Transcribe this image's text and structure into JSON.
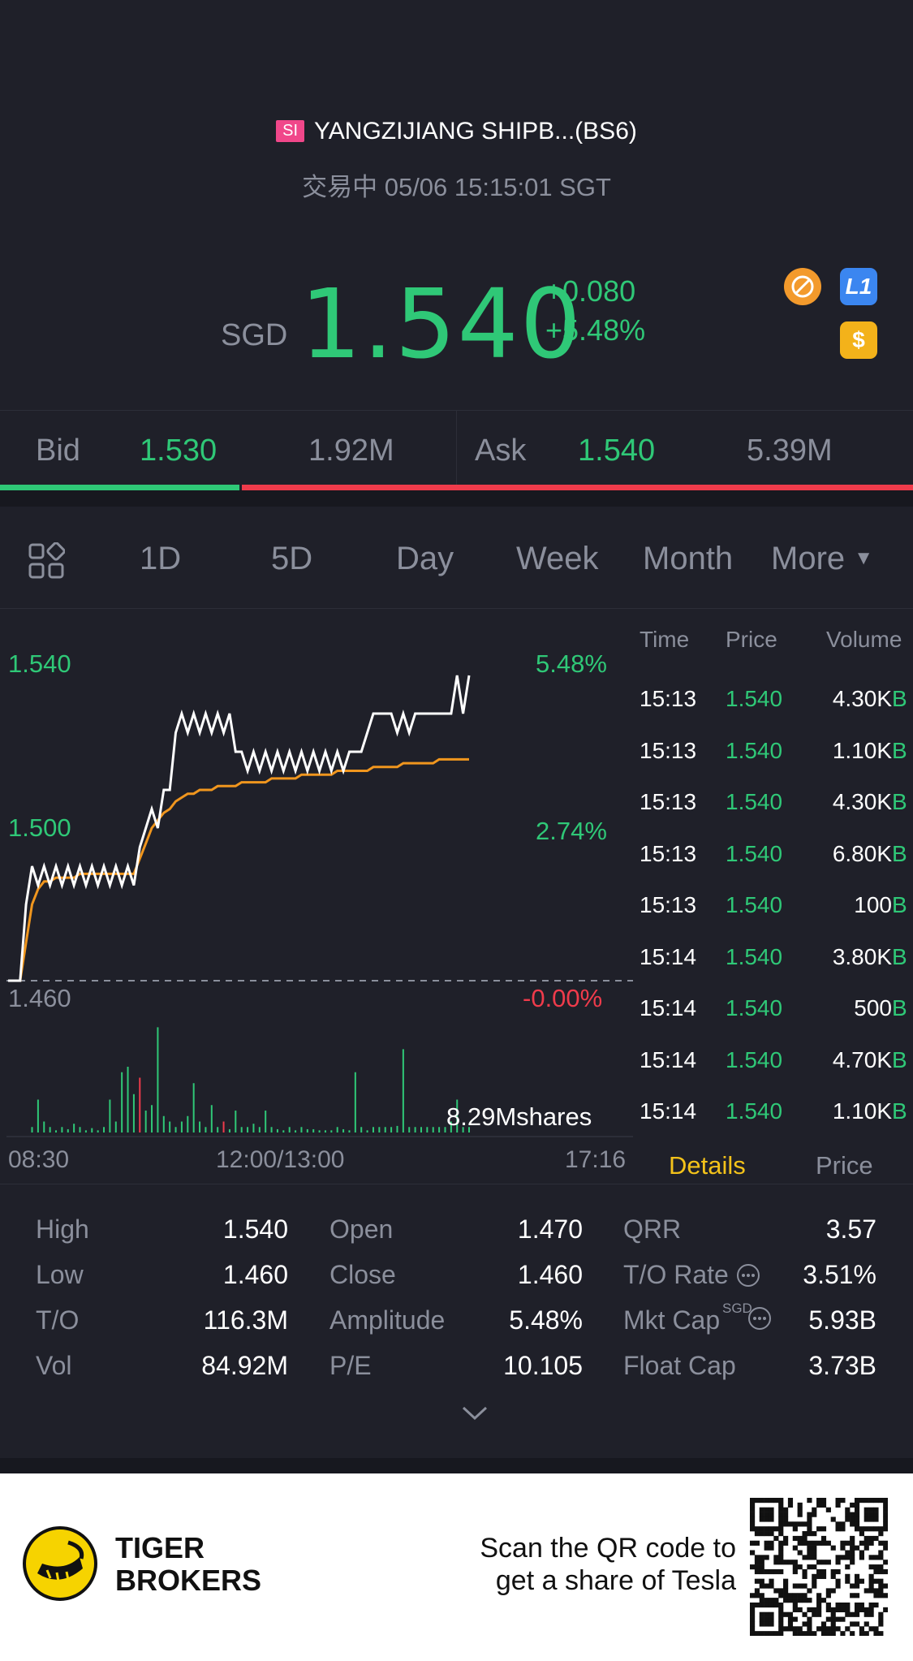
{
  "header": {
    "market_badge": "SI",
    "title": "YANGZIJIANG SHIPB...(BS6)",
    "status": "交易中 05/06 15:15:01 SGT"
  },
  "quote": {
    "currency": "SGD",
    "price": "1.540",
    "change": "+0.080",
    "change_pct": "+5.48%",
    "icons": [
      "no-short-icon",
      "level1-icon",
      "dollar-icon"
    ],
    "icon_l1": "L1",
    "icon_dollar": "$"
  },
  "bidask": {
    "bid_label": "Bid",
    "bid_price": "1.530",
    "bid_size": "1.92M",
    "ask_label": "Ask",
    "ask_price": "1.540",
    "ask_size": "5.39M",
    "bid_ratio": 0.262
  },
  "tabs": [
    "1D",
    "5D",
    "Day",
    "Week",
    "Month",
    "More"
  ],
  "active_tab": "1D",
  "chart": {
    "y_left": [
      "1.540",
      "1.500",
      "1.460"
    ],
    "y_right": [
      "5.48%",
      "2.74%",
      "-0.00%"
    ],
    "volume_label": "8.29Mshares",
    "x_ticks": [
      "08:30",
      "12:00/13:00",
      "17:16"
    ]
  },
  "chart_data": {
    "type": "line",
    "ylim": [
      1.46,
      1.54
    ],
    "series": [
      {
        "values": [
          1.46,
          1.46,
          1.46,
          1.48,
          1.49,
          1.485,
          1.49,
          1.485,
          1.49,
          1.485,
          1.49,
          1.485,
          1.49,
          1.485,
          1.49,
          1.485,
          1.49,
          1.485,
          1.49,
          1.485,
          1.49,
          1.485,
          1.495,
          1.5,
          1.505,
          1.5,
          1.51,
          1.51,
          1.525,
          1.53,
          1.525,
          1.53,
          1.525,
          1.53,
          1.525,
          1.53,
          1.525,
          1.53,
          1.52,
          1.52,
          1.515,
          1.52,
          1.515,
          1.52,
          1.515,
          1.52,
          1.515,
          1.52,
          1.515,
          1.52,
          1.515,
          1.52,
          1.515,
          1.52,
          1.515,
          1.52,
          1.515,
          1.52,
          1.52,
          1.52,
          1.525,
          1.53,
          1.53,
          1.53,
          1.53,
          1.525,
          1.53,
          1.525,
          1.53,
          1.53,
          1.53,
          1.53,
          1.53,
          1.53,
          1.53,
          1.54,
          1.53,
          1.54
        ]
      },
      {
        "values": [
          1.46,
          1.46,
          1.46,
          1.47,
          1.48,
          1.484,
          1.486,
          1.486,
          1.487,
          1.487,
          1.487,
          1.487,
          1.488,
          1.488,
          1.488,
          1.488,
          1.488,
          1.488,
          1.488,
          1.488,
          1.488,
          1.488,
          1.492,
          1.496,
          1.5,
          1.502,
          1.504,
          1.505,
          1.507,
          1.508,
          1.509,
          1.509,
          1.51,
          1.51,
          1.51,
          1.511,
          1.511,
          1.511,
          1.511,
          1.512,
          1.512,
          1.512,
          1.512,
          1.512,
          1.513,
          1.513,
          1.513,
          1.513,
          1.513,
          1.514,
          1.514,
          1.514,
          1.514,
          1.514,
          1.514,
          1.515,
          1.515,
          1.515,
          1.515,
          1.515,
          1.515,
          1.516,
          1.516,
          1.516,
          1.516,
          1.516,
          1.517,
          1.517,
          1.517,
          1.517,
          1.517,
          1.517,
          1.518,
          1.518,
          1.518,
          1.518,
          1.518,
          1.518
        ]
      }
    ],
    "volume": [
      0,
      0,
      0,
      0,
      0.05,
      0.3,
      0.1,
      0.05,
      0.02,
      0.05,
      0.03,
      0.08,
      0.05,
      0.02,
      0.04,
      0.02,
      0.05,
      0.3,
      0.1,
      0.55,
      0.6,
      0.35,
      0.5,
      0.2,
      0.25,
      0.96,
      0.15,
      0.1,
      0.05,
      0.1,
      0.15,
      0.45,
      0.1,
      0.05,
      0.25,
      0.05,
      0.1,
      0.03,
      0.2,
      0.05,
      0.05,
      0.08,
      0.05,
      0.2,
      0.05,
      0.03,
      0.02,
      0.05,
      0.02,
      0.05,
      0.03,
      0.03,
      0.02,
      0.02,
      0.02,
      0.05,
      0.03,
      0.02,
      0.55,
      0.05,
      0.02,
      0.05,
      0.05,
      0.05,
      0.05,
      0.06,
      0.76,
      0.05,
      0.05,
      0.05,
      0.05,
      0.05,
      0.05,
      0.05,
      0.1,
      0.3,
      0.05,
      0.05
    ],
    "volume_red_index": [
      22,
      36
    ]
  },
  "trades": {
    "headers": [
      "Time",
      "Price",
      "Volume"
    ],
    "rows": [
      {
        "time": "15:13",
        "price": "1.540",
        "vol": "4.30K",
        "side": "B"
      },
      {
        "time": "15:13",
        "price": "1.540",
        "vol": "1.10K",
        "side": "B"
      },
      {
        "time": "15:13",
        "price": "1.540",
        "vol": "4.30K",
        "side": "B"
      },
      {
        "time": "15:13",
        "price": "1.540",
        "vol": "6.80K",
        "side": "B"
      },
      {
        "time": "15:13",
        "price": "1.540",
        "vol": "100",
        "side": "B"
      },
      {
        "time": "15:14",
        "price": "1.540",
        "vol": "3.80K",
        "side": "B"
      },
      {
        "time": "15:14",
        "price": "1.540",
        "vol": "500",
        "side": "B"
      },
      {
        "time": "15:14",
        "price": "1.540",
        "vol": "4.70K",
        "side": "B"
      },
      {
        "time": "15:14",
        "price": "1.540",
        "vol": "1.10K",
        "side": "B"
      }
    ],
    "tab_details": "Details",
    "tab_price": "Price"
  },
  "stats": {
    "col1": [
      [
        "High",
        "1.540"
      ],
      [
        "Low",
        "1.460"
      ],
      [
        "T/O",
        "116.3M"
      ],
      [
        "Vol",
        "84.92M"
      ]
    ],
    "col2": [
      [
        "Open",
        "1.470"
      ],
      [
        "Close",
        "1.460"
      ],
      [
        "Amplitude",
        "5.48%"
      ],
      [
        "P/E",
        "10.105"
      ]
    ],
    "col3": [
      [
        "QRR",
        "3.57"
      ],
      [
        "T/O Rate",
        "3.51%"
      ],
      [
        "Mkt Cap",
        "5.93B"
      ],
      [
        "Float Cap",
        "3.73B"
      ]
    ],
    "mkt_cap_unit": "SGD"
  },
  "footer": {
    "brand_line1": "TIGER",
    "brand_line2": "BROKERS",
    "promo_line1": "Scan the QR code to",
    "promo_line2": "get a share of Tesla"
  },
  "colors": {
    "up": "#2fc877",
    "down": "#ef3b4b",
    "accent": "#f3c21a",
    "bg": "#1f2029",
    "avg_line": "#f0961e"
  }
}
